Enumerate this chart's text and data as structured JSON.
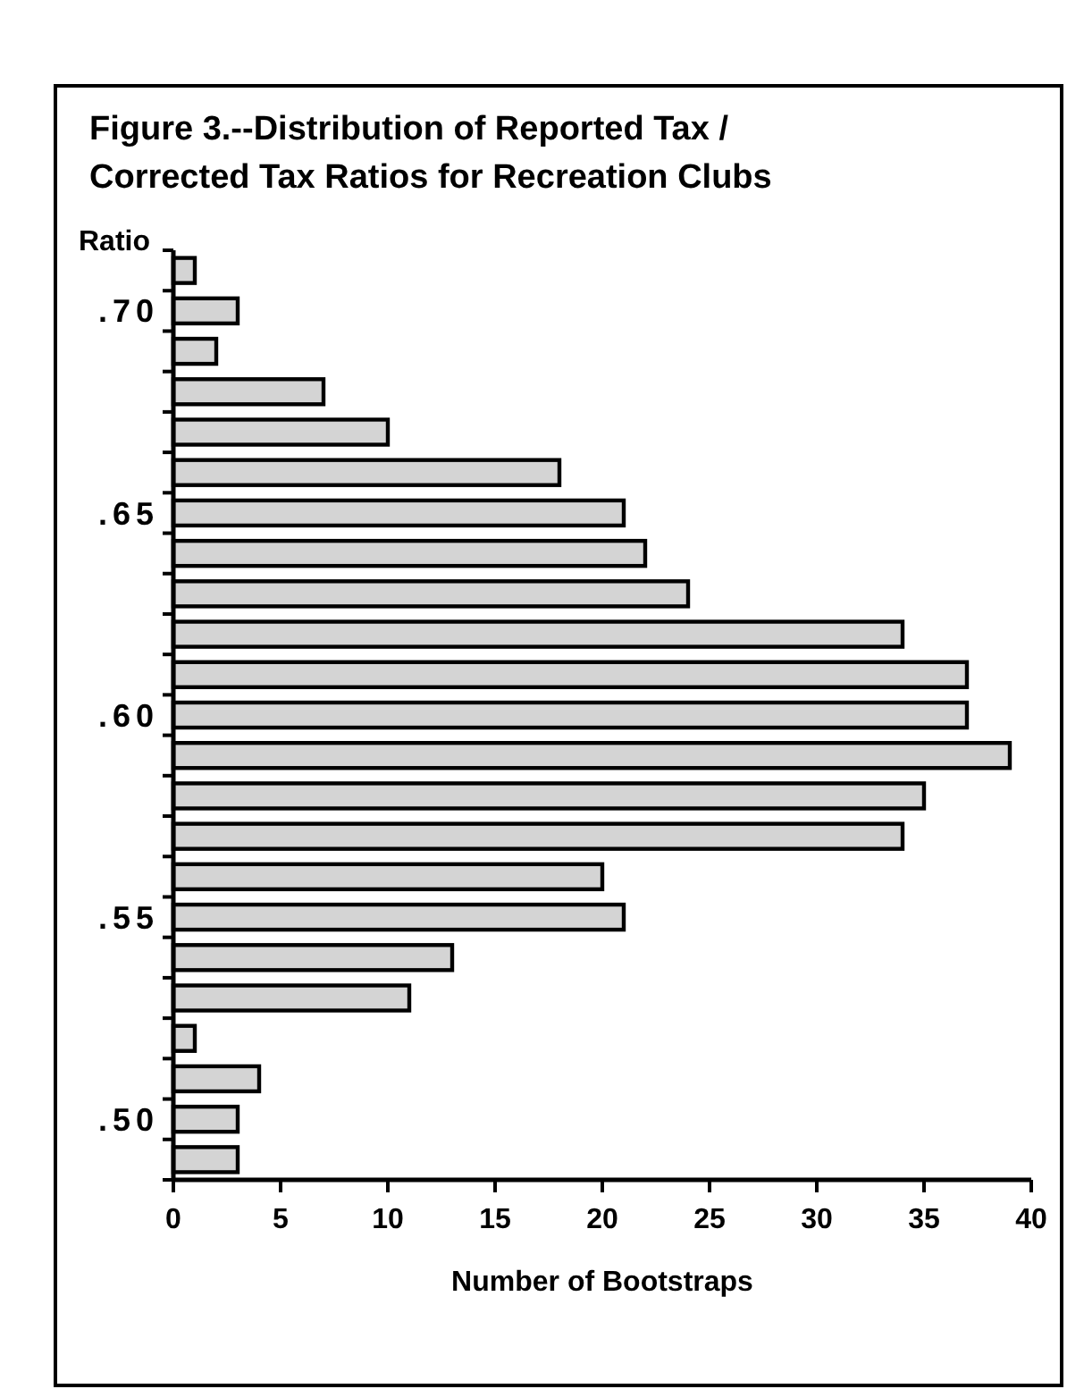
{
  "chart_data": {
    "type": "bar",
    "orientation": "horizontal",
    "title": "Figure 3.--Distribution of Reported Tax / Corrected Tax Ratios for Recreation Clubs",
    "ylabel": "Ratio",
    "xlabel": "Number of Bootstraps",
    "categories": [
      null,
      ".70",
      null,
      null,
      null,
      null,
      ".65",
      null,
      null,
      null,
      null,
      ".60",
      null,
      null,
      null,
      null,
      ".55",
      null,
      null,
      null,
      null,
      ".50",
      null
    ],
    "values": [
      1,
      3,
      2,
      7,
      10,
      18,
      21,
      22,
      24,
      34,
      37,
      37,
      39,
      35,
      34,
      20,
      21,
      13,
      11,
      1,
      4,
      3,
      3
    ],
    "color": "#d4d4d4",
    "xlim": [
      0,
      40
    ],
    "xticks": [
      0,
      5,
      10,
      15,
      20,
      25,
      30,
      35,
      40
    ],
    "grid": false
  }
}
